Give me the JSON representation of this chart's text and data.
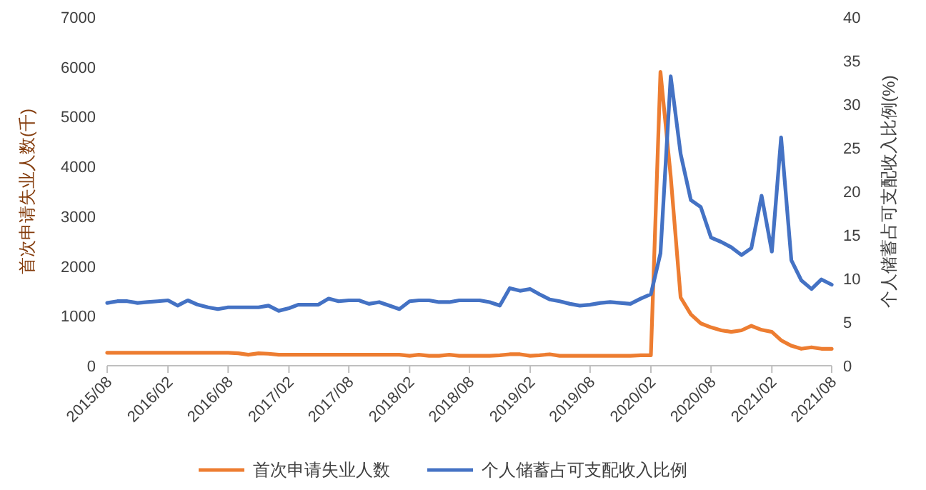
{
  "chart_data": {
    "type": "line",
    "ylabel": "首次申请失业人数(千)",
    "y2label": "个人储蓄占可支配收入比例(%)",
    "x": [
      "2015-08",
      "2015-09",
      "2015-10",
      "2015-11",
      "2015-12",
      "2016-01",
      "2016-02",
      "2016-03",
      "2016-04",
      "2016-05",
      "2016-06",
      "2016-07",
      "2016-08",
      "2016-09",
      "2016-10",
      "2016-11",
      "2016-12",
      "2017-01",
      "2017-02",
      "2017-03",
      "2017-04",
      "2017-05",
      "2017-06",
      "2017-07",
      "2017-08",
      "2017-09",
      "2017-10",
      "2017-11",
      "2017-12",
      "2018-01",
      "2018-02",
      "2018-03",
      "2018-04",
      "2018-05",
      "2018-06",
      "2018-07",
      "2018-08",
      "2018-09",
      "2018-10",
      "2018-11",
      "2018-12",
      "2019-01",
      "2019-02",
      "2019-03",
      "2019-04",
      "2019-05",
      "2019-06",
      "2019-07",
      "2019-08",
      "2019-09",
      "2019-10",
      "2019-11",
      "2019-12",
      "2020-01",
      "2020-02",
      "2020-03",
      "2020-04",
      "2020-05",
      "2020-06",
      "2020-07",
      "2020-08",
      "2020-09",
      "2020-10",
      "2020-11",
      "2020-12",
      "2021-01",
      "2021-02",
      "2021-03",
      "2021-04",
      "2021-05",
      "2021-06",
      "2021-07",
      "2021-08"
    ],
    "series": [
      {
        "name": "首次申请失业人数",
        "color": "#ed7d31",
        "values": [
          260,
          260,
          260,
          260,
          260,
          260,
          260,
          260,
          260,
          260,
          260,
          260,
          260,
          250,
          220,
          250,
          240,
          220,
          220,
          220,
          220,
          220,
          220,
          220,
          220,
          220,
          220,
          220,
          220,
          220,
          200,
          220,
          200,
          200,
          220,
          200,
          200,
          200,
          200,
          210,
          230,
          230,
          200,
          210,
          230,
          200,
          200,
          200,
          200,
          200,
          200,
          200,
          200,
          210,
          210,
          5900,
          3800,
          1370,
          1030,
          850,
          770,
          710,
          680,
          710,
          800,
          720,
          680,
          510,
          400,
          340,
          370,
          340,
          340
        ]
      },
      {
        "name": "个人储蓄占可支配收入比例",
        "color": "#4472c4",
        "axis": "y2",
        "values": [
          7.2,
          7.4,
          7.4,
          7.2,
          7.3,
          7.4,
          7.5,
          6.9,
          7.5,
          7.0,
          6.7,
          6.5,
          6.7,
          6.7,
          6.7,
          6.7,
          6.9,
          6.3,
          6.6,
          7.0,
          7.0,
          7.0,
          7.7,
          7.4,
          7.5,
          7.5,
          7.1,
          7.3,
          6.9,
          6.5,
          7.4,
          7.5,
          7.5,
          7.3,
          7.3,
          7.5,
          7.5,
          7.5,
          7.3,
          6.9,
          8.9,
          8.6,
          8.8,
          8.2,
          7.6,
          7.4,
          7.1,
          6.9,
          7.0,
          7.2,
          7.3,
          7.2,
          7.1,
          7.7,
          8.2,
          12.9,
          33.2,
          24.3,
          19.0,
          18.2,
          14.7,
          14.2,
          13.6,
          12.7,
          13.5,
          19.5,
          13.1,
          26.2,
          12.1,
          9.8,
          8.8,
          9.9,
          9.3
        ]
      }
    ],
    "xlim": [
      "2015-08",
      "2021-08"
    ],
    "xticks": [
      {
        "value": "2015-08",
        "label": "2015/08"
      },
      {
        "value": "2016-02",
        "label": "2016/02"
      },
      {
        "value": "2016-08",
        "label": "2016/08"
      },
      {
        "value": "2017-02",
        "label": "2017/02"
      },
      {
        "value": "2017-08",
        "label": "2017/08"
      },
      {
        "value": "2018-02",
        "label": "2018/02"
      },
      {
        "value": "2018-08",
        "label": "2018/08"
      },
      {
        "value": "2019-02",
        "label": "2019/02"
      },
      {
        "value": "2019-08",
        "label": "2019/08"
      },
      {
        "value": "2020-02",
        "label": "2020/02"
      },
      {
        "value": "2020-08",
        "label": "2020/08"
      },
      {
        "value": "2021-02",
        "label": "2021/02"
      },
      {
        "value": "2021-08",
        "label": "2021/08"
      }
    ],
    "ylim": [
      0,
      7000
    ],
    "yticks": [
      0,
      1000,
      2000,
      3000,
      4000,
      5000,
      6000,
      7000
    ],
    "y2lim": [
      0,
      40
    ],
    "y2ticks": [
      0,
      5,
      10,
      15,
      20,
      25,
      30,
      35,
      40
    ],
    "grid": false,
    "legend": "bottom",
    "marker": "none",
    "line_style": "solid"
  }
}
